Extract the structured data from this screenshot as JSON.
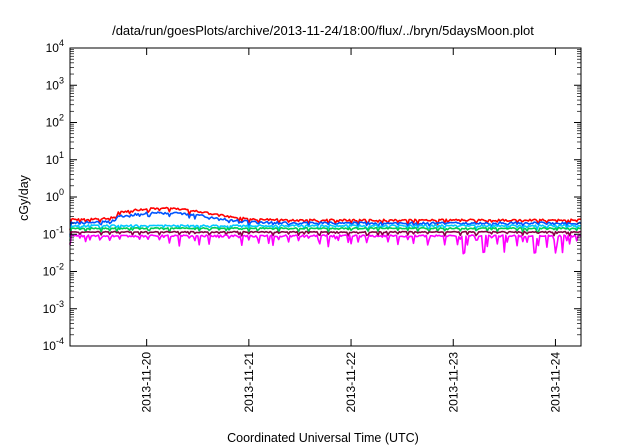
{
  "chart_data": {
    "type": "line",
    "title": "/data/run/goesPlots/archive/2013-11-24/18:00/flux/../bryn/5daysMoon.plot",
    "xlabel": "Coordinated Universal Time (UTC)",
    "ylabel": "cGy/day",
    "y_scale": "log",
    "ylim_exponent": [
      -4,
      4
    ],
    "y_ticks": [
      {
        "base": "10",
        "exp": "-4"
      },
      {
        "base": "10",
        "exp": "-3"
      },
      {
        "base": "10",
        "exp": "-2"
      },
      {
        "base": "10",
        "exp": "-1"
      },
      {
        "base": "10",
        "exp": "0"
      },
      {
        "base": "10",
        "exp": "1"
      },
      {
        "base": "10",
        "exp": "2"
      },
      {
        "base": "10",
        "exp": "3"
      },
      {
        "base": "10",
        "exp": "4"
      }
    ],
    "xlim_days": [
      0,
      5
    ],
    "x_ticks": [
      {
        "label": "2013-11-20",
        "day": 0.75
      },
      {
        "label": "2013-11-21",
        "day": 1.75
      },
      {
        "label": "2013-11-22",
        "day": 2.75
      },
      {
        "label": "2013-11-23",
        "day": 3.75
      },
      {
        "label": "2013-11-24",
        "day": 4.75
      }
    ],
    "grid": false,
    "legend": "none",
    "series": [
      {
        "color": "#ff0000",
        "base": 0.24,
        "noise": 0.12,
        "bump": 0.5,
        "dips": false
      },
      {
        "color": "#0055ff",
        "base": 0.2,
        "noise": 0.14,
        "bump": 0.38,
        "dips": false
      },
      {
        "color": "#00c8ff",
        "base": 0.17,
        "noise": 0.1,
        "bump": 0.0,
        "dips": false
      },
      {
        "color": "#00cc55",
        "base": 0.145,
        "noise": 0.07,
        "bump": 0.0,
        "dips": false
      },
      {
        "color": "#880044",
        "base": 0.115,
        "noise": 0.06,
        "bump": 0.0,
        "dips": false
      },
      {
        "color": "#ff00ff",
        "base": 0.09,
        "noise": 0.12,
        "bump": 0.0,
        "dips": true
      }
    ]
  }
}
